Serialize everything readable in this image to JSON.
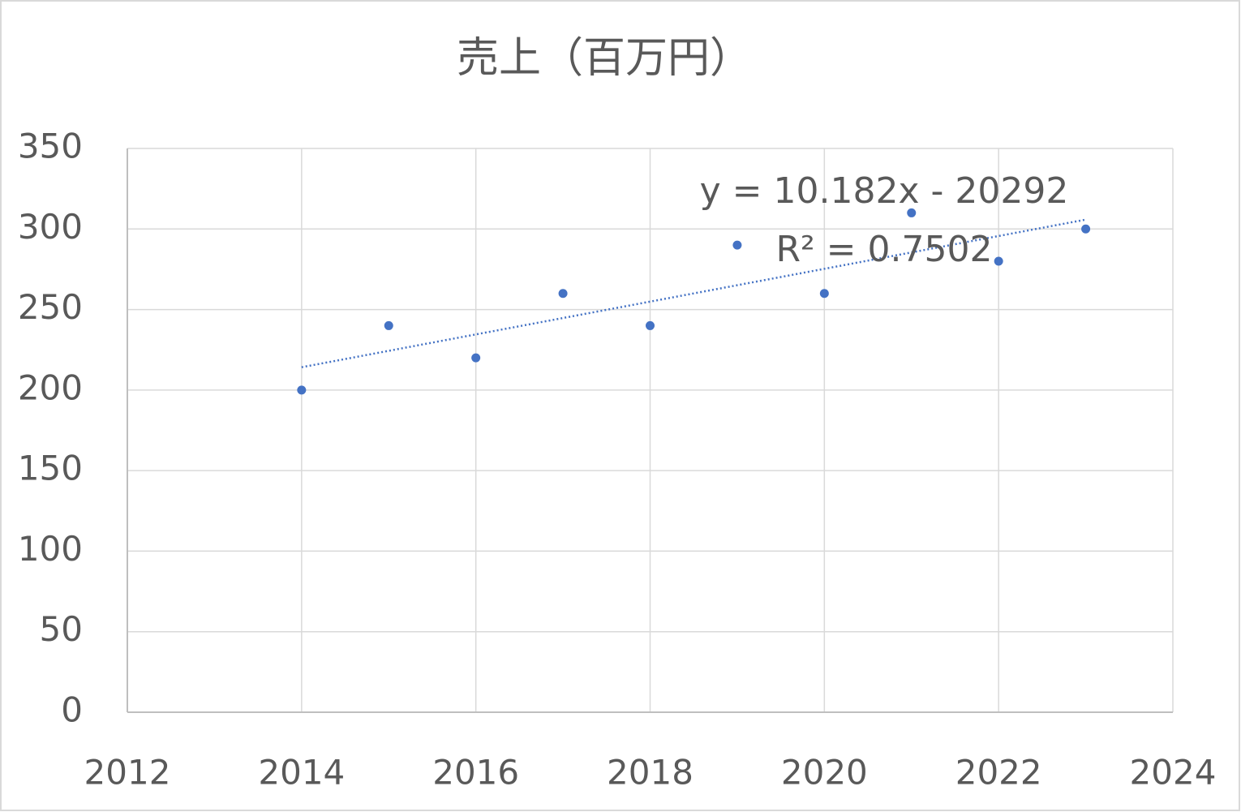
{
  "chart_data": {
    "type": "scatter",
    "title": "売上（百万円）",
    "x": [
      2014,
      2015,
      2016,
      2017,
      2018,
      2019,
      2020,
      2021,
      2022,
      2023
    ],
    "values": [
      200,
      240,
      220,
      260,
      240,
      290,
      260,
      310,
      280,
      300
    ],
    "color": "#4472c4",
    "xlim": [
      2012,
      2024
    ],
    "xticks": [
      2012,
      2014,
      2016,
      2018,
      2020,
      2022,
      2024
    ],
    "ylim": [
      0,
      350
    ],
    "yticks": [
      0,
      50,
      100,
      150,
      200,
      250,
      300,
      350
    ],
    "grid": true,
    "trendline": {
      "type": "linear",
      "equation": "y = 10.182x - 20292",
      "r_squared": "R² = 0.7502"
    }
  }
}
